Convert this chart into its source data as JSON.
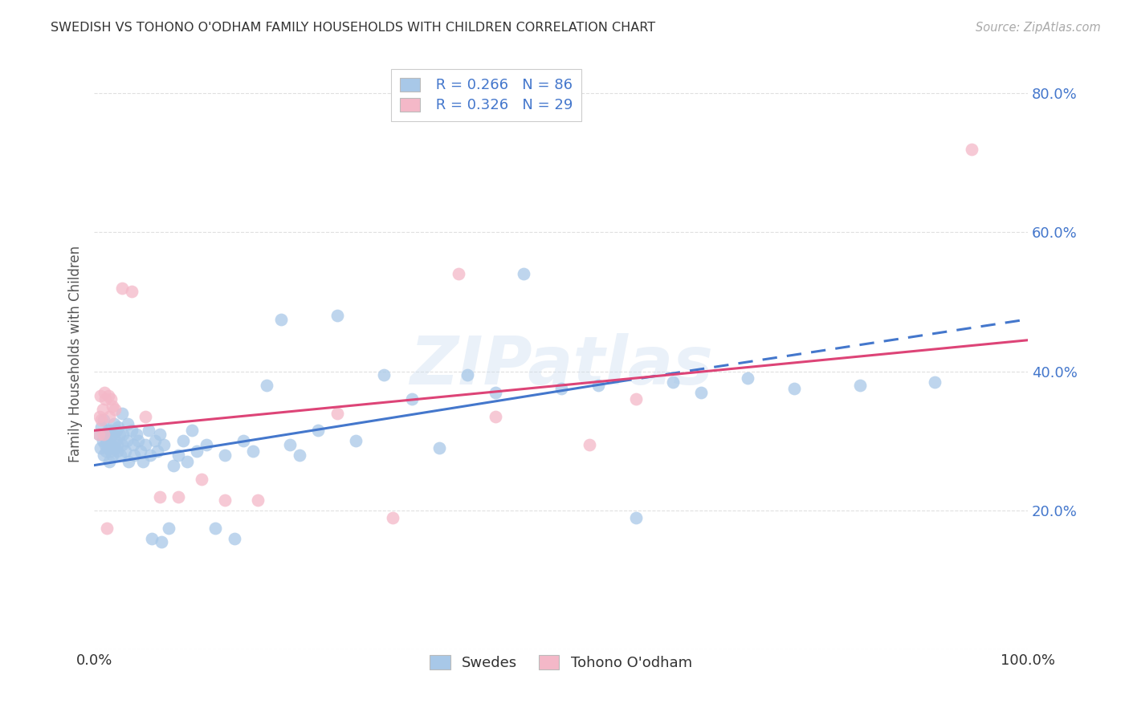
{
  "title": "SWEDISH VS TOHONO O'ODHAM FAMILY HOUSEHOLDS WITH CHILDREN CORRELATION CHART",
  "source": "Source: ZipAtlas.com",
  "ylabel": "Family Households with Children",
  "blue_R": 0.266,
  "blue_N": 86,
  "pink_R": 0.326,
  "pink_N": 29,
  "blue_color": "#a8c8e8",
  "pink_color": "#f4b8c8",
  "blue_line_color": "#4477cc",
  "pink_line_color": "#dd4477",
  "legend_label_blue": "Swedes",
  "legend_label_pink": "Tohono O'odham",
  "ytick_vals": [
    0.0,
    0.2,
    0.4,
    0.6,
    0.8
  ],
  "ytick_labels": [
    "",
    "20.0%",
    "40.0%",
    "60.0%",
    "80.0%"
  ],
  "blue_x": [
    0.005,
    0.007,
    0.008,
    0.009,
    0.01,
    0.01,
    0.012,
    0.012,
    0.013,
    0.014,
    0.015,
    0.015,
    0.016,
    0.017,
    0.018,
    0.018,
    0.019,
    0.02,
    0.02,
    0.021,
    0.022,
    0.023,
    0.024,
    0.025,
    0.025,
    0.026,
    0.027,
    0.028,
    0.03,
    0.03,
    0.031,
    0.033,
    0.035,
    0.036,
    0.037,
    0.04,
    0.042,
    0.043,
    0.045,
    0.047,
    0.05,
    0.052,
    0.055,
    0.058,
    0.06,
    0.062,
    0.065,
    0.068,
    0.07,
    0.072,
    0.075,
    0.08,
    0.085,
    0.09,
    0.095,
    0.1,
    0.105,
    0.11,
    0.12,
    0.13,
    0.14,
    0.15,
    0.16,
    0.17,
    0.185,
    0.2,
    0.21,
    0.22,
    0.24,
    0.26,
    0.28,
    0.31,
    0.34,
    0.37,
    0.4,
    0.43,
    0.46,
    0.5,
    0.54,
    0.58,
    0.62,
    0.65,
    0.7,
    0.75,
    0.82,
    0.9
  ],
  "blue_y": [
    0.31,
    0.29,
    0.32,
    0.3,
    0.28,
    0.33,
    0.295,
    0.31,
    0.285,
    0.3,
    0.315,
    0.29,
    0.27,
    0.305,
    0.285,
    0.315,
    0.295,
    0.31,
    0.28,
    0.325,
    0.29,
    0.3,
    0.315,
    0.285,
    0.295,
    0.32,
    0.31,
    0.28,
    0.34,
    0.295,
    0.31,
    0.285,
    0.3,
    0.325,
    0.27,
    0.315,
    0.295,
    0.28,
    0.31,
    0.3,
    0.285,
    0.27,
    0.295,
    0.315,
    0.28,
    0.16,
    0.3,
    0.285,
    0.31,
    0.155,
    0.295,
    0.175,
    0.265,
    0.28,
    0.3,
    0.27,
    0.315,
    0.285,
    0.295,
    0.175,
    0.28,
    0.16,
    0.3,
    0.285,
    0.38,
    0.475,
    0.295,
    0.28,
    0.315,
    0.48,
    0.3,
    0.395,
    0.36,
    0.29,
    0.395,
    0.37,
    0.54,
    0.375,
    0.38,
    0.19,
    0.385,
    0.37,
    0.39,
    0.375,
    0.38,
    0.385
  ],
  "pink_x": [
    0.005,
    0.006,
    0.007,
    0.008,
    0.009,
    0.01,
    0.011,
    0.012,
    0.014,
    0.015,
    0.016,
    0.018,
    0.02,
    0.022,
    0.03,
    0.04,
    0.055,
    0.07,
    0.09,
    0.115,
    0.14,
    0.175,
    0.26,
    0.32,
    0.39,
    0.43,
    0.53,
    0.58,
    0.94
  ],
  "pink_y": [
    0.31,
    0.335,
    0.365,
    0.33,
    0.345,
    0.31,
    0.37,
    0.36,
    0.175,
    0.365,
    0.335,
    0.36,
    0.35,
    0.345,
    0.52,
    0.515,
    0.335,
    0.22,
    0.22,
    0.245,
    0.215,
    0.215,
    0.34,
    0.19,
    0.54,
    0.335,
    0.295,
    0.36,
    0.72
  ],
  "blue_trend_x0": 0.0,
  "blue_trend_y0": 0.265,
  "blue_trend_x1": 0.56,
  "blue_trend_y1": 0.385,
  "blue_trend_x2": 1.0,
  "blue_trend_y2": 0.475,
  "pink_trend_x0": 0.0,
  "pink_trend_y0": 0.315,
  "pink_trend_x1": 1.0,
  "pink_trend_y1": 0.445,
  "xlim": [
    0.0,
    1.0
  ],
  "ylim": [
    0.0,
    0.85
  ],
  "watermark": "ZIPatlas",
  "bg_color": "#ffffff",
  "grid_color": "#e0e0e0"
}
